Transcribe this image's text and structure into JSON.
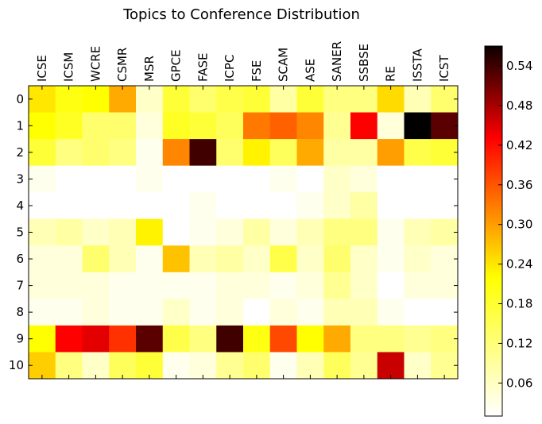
{
  "chart_data": {
    "type": "heatmap",
    "title": "Topics to Conference Distribution",
    "xlabel": "",
    "ylabel": "",
    "columns": [
      "ICSE",
      "ICSM",
      "WCRE",
      "CSMR",
      "MSR",
      "GPCE",
      "FASE",
      "ICPC",
      "FSE",
      "SCAM",
      "ASE",
      "SANER",
      "SSBSE",
      "RE",
      "ISSTA",
      "ICST"
    ],
    "rows": [
      "0",
      "1",
      "2",
      "3",
      "4",
      "5",
      "6",
      "7",
      "8",
      "9",
      "10"
    ],
    "values": [
      [
        0.17,
        0.14,
        0.15,
        0.22,
        0.04,
        0.12,
        0.09,
        0.11,
        0.12,
        0.06,
        0.12,
        0.08,
        0.08,
        0.18,
        0.05,
        0.09
      ],
      [
        0.15,
        0.13,
        0.09,
        0.09,
        0.03,
        0.13,
        0.12,
        0.1,
        0.26,
        0.28,
        0.25,
        0.07,
        0.36,
        0.03,
        0.56,
        0.48
      ],
      [
        0.12,
        0.08,
        0.09,
        0.08,
        0.02,
        0.25,
        0.5,
        0.09,
        0.16,
        0.1,
        0.22,
        0.06,
        0.06,
        0.23,
        0.11,
        0.12
      ],
      [
        0.02,
        0.01,
        0.01,
        0.01,
        0.02,
        0.0,
        0.01,
        0.01,
        0.01,
        0.02,
        0.01,
        0.04,
        0.03,
        0.01,
        0.01,
        0.0
      ],
      [
        0.01,
        0.01,
        0.01,
        0.01,
        0.01,
        0.0,
        0.02,
        0.01,
        0.01,
        0.01,
        0.02,
        0.04,
        0.06,
        0.01,
        0.01,
        0.01
      ],
      [
        0.05,
        0.06,
        0.04,
        0.05,
        0.16,
        0.01,
        0.02,
        0.03,
        0.06,
        0.03,
        0.05,
        0.08,
        0.08,
        0.02,
        0.05,
        0.06
      ],
      [
        0.03,
        0.03,
        0.09,
        0.05,
        0.02,
        0.2,
        0.05,
        0.06,
        0.04,
        0.11,
        0.04,
        0.09,
        0.04,
        0.02,
        0.04,
        0.03
      ],
      [
        0.03,
        0.03,
        0.03,
        0.02,
        0.02,
        0.02,
        0.02,
        0.03,
        0.03,
        0.02,
        0.03,
        0.07,
        0.04,
        0.01,
        0.03,
        0.03
      ],
      [
        0.02,
        0.02,
        0.03,
        0.02,
        0.02,
        0.04,
        0.02,
        0.03,
        0.01,
        0.03,
        0.02,
        0.05,
        0.05,
        0.02,
        0.01,
        0.01
      ],
      [
        0.15,
        0.36,
        0.38,
        0.32,
        0.48,
        0.11,
        0.08,
        0.5,
        0.14,
        0.3,
        0.15,
        0.22,
        0.08,
        0.08,
        0.07,
        0.08
      ],
      [
        0.19,
        0.08,
        0.04,
        0.1,
        0.12,
        0.02,
        0.03,
        0.07,
        0.09,
        0.02,
        0.05,
        0.1,
        0.07,
        0.4,
        0.04,
        0.07
      ]
    ],
    "colormap": "hot_r",
    "colorbar": {
      "range": [
        0.01,
        0.57
      ],
      "ticks": [
        0.06,
        0.12,
        0.18,
        0.24,
        0.3,
        0.36,
        0.42,
        0.48,
        0.54
      ],
      "tick_labels": [
        "0.06",
        "0.12",
        "0.18",
        "0.24",
        "0.30",
        "0.36",
        "0.42",
        "0.48",
        "0.54"
      ]
    },
    "x_tick_position": "top",
    "grid": false
  }
}
